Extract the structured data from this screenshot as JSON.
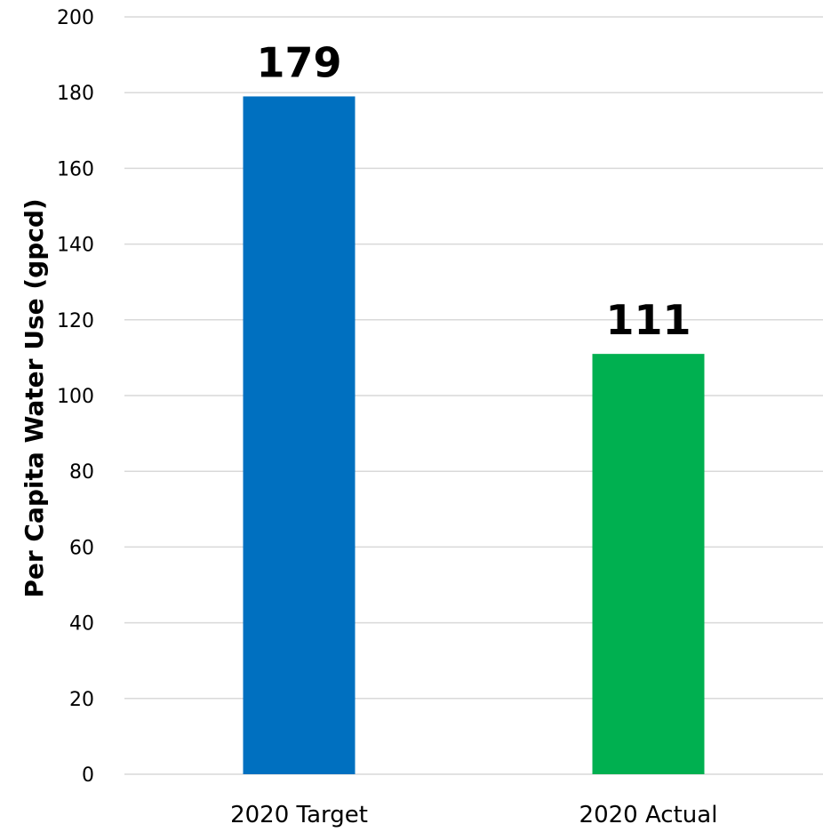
{
  "chart_data": {
    "type": "bar",
    "title": "",
    "xlabel": "",
    "ylabel": "Per Capita Water Use (gpcd)",
    "categories": [
      "2020 Target",
      "2020 Actual"
    ],
    "values": [
      179,
      111
    ],
    "data_labels": [
      "179",
      "111"
    ],
    "bar_colors": [
      "#0070c0",
      "#00b050"
    ],
    "ylim": [
      0,
      200
    ],
    "yticks": [
      0,
      20,
      40,
      60,
      80,
      100,
      120,
      140,
      160,
      180,
      200
    ],
    "grid": true,
    "legend": "none"
  }
}
